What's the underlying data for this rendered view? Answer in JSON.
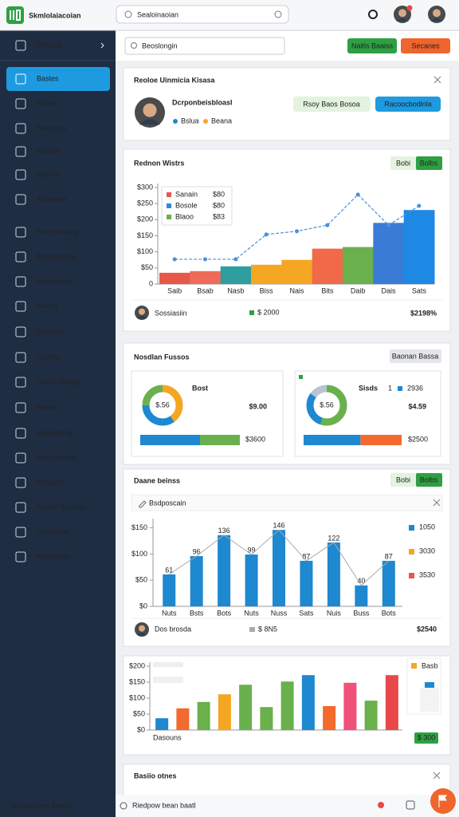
{
  "header": {
    "app_name": "Skmlolaiacoian",
    "search_placeholder": "Sealoinaoian"
  },
  "sidebar": {
    "active": 1,
    "items": [
      "Bongna",
      "Bastes",
      "Bsoiss",
      "Rocisdos",
      "Nosms",
      "Namsis",
      "Aohanlas",
      "Rocostosbag",
      "Roompotiing",
      "Bonsenbas",
      "Bansis",
      "Boniciss",
      "Socrdo",
      "Nansn Bating",
      "Baniss",
      "Nanisebing",
      "Bonscbosnis",
      "Renisno",
      "Sassin Sspong",
      "Nanssban",
      "Ronsiiona"
    ]
  },
  "toolbar": {
    "search_placeholder": "Beoslongin",
    "buttons": [
      "Naitis Baaiss",
      "Secanes"
    ]
  },
  "profile_card": {
    "title": "Reoloe Uinmicia Kisasa",
    "name": "Dcrponbeisbloasl",
    "tags": [
      "Bslua",
      "Beana"
    ],
    "buttons": [
      "Rsoy Baos Bosoa",
      "Racoocbodlnla"
    ]
  },
  "revenue_card": {
    "title": "Rednon Wistrs",
    "buttons": [
      "Bobi",
      "Bolbs"
    ],
    "chart": {
      "type": "area",
      "categories": [
        "Saib",
        "Bsab",
        "Nasb",
        "Biss",
        "Nais",
        "Bits",
        "Daib",
        "Dais",
        "Sats"
      ],
      "values": [
        35,
        40,
        55,
        60,
        75,
        110,
        115,
        190,
        230
      ],
      "colors": [
        "#e8584a",
        "#f06a5a",
        "#2e9e9e",
        "#f5a623",
        "#f5a623",
        "#f06a4a",
        "#6ab04c",
        "#3a7bd5",
        "#1e88e5"
      ],
      "line": {
        "color": "#4a90d9",
        "values": [
          77,
          77,
          77,
          154,
          164,
          183,
          278,
          183,
          243
        ]
      },
      "ylim": [
        0,
        300
      ],
      "yticks": [
        0,
        {
          "value": 50,
          "label": "$50"
        },
        {
          "value": 100,
          "label": "$100"
        },
        {
          "value": 150,
          "label": "$150"
        },
        {
          "value": 200,
          "label": "$200"
        },
        {
          "value": 250,
          "label": "$250"
        },
        {
          "value": 300,
          "label": "$300"
        }
      ],
      "legend": [
        {
          "name": "Sanain",
          "value": "$80",
          "color": "#e8584a"
        },
        {
          "name": "Bosole",
          "value": "$80",
          "color": "#2e86de"
        },
        {
          "name": "Blaoo",
          "value": "$83",
          "color": "#6ab04c"
        }
      ]
    },
    "footer": {
      "name": "Sossiasiin",
      "amount": "$ 2000",
      "change": "$2198%"
    }
  },
  "finance_card": {
    "title": "Nosdlan Fussos",
    "button": "Baonan Bassa",
    "panels": [
      {
        "label": "Bost",
        "center": "$.56",
        "amount": "$9.00",
        "amount_color": "#2e9e3a",
        "donut": {
          "values": [
            40,
            35,
            25
          ],
          "colors": [
            "#f5a623",
            "#1e88d0",
            "#6ab04c"
          ]
        },
        "bar": {
          "values": [
            60,
            40
          ],
          "colors": [
            "#1e88d0",
            "#6ab04c"
          ]
        },
        "total": "$3600"
      },
      {
        "label": "Sisds",
        "count": "1",
        "rate": "2936",
        "center": "$.56",
        "amount": "$4.59",
        "amount_color": "#f05a22",
        "donut": {
          "values": [
            55,
            30,
            15
          ],
          "colors": [
            "#6ab04c",
            "#1e88d0",
            "#b9c4cf"
          ]
        },
        "bar": {
          "values": [
            58,
            42
          ],
          "colors": [
            "#1e88d0",
            "#f26a2e"
          ]
        },
        "total": "$2500"
      }
    ]
  },
  "sales_card": {
    "title": "Daane beinss",
    "buttons": [
      "Bobi",
      "Bolbs"
    ],
    "filter": "Bsdposcain",
    "chart": {
      "type": "bar",
      "categories": [
        "Nuts",
        "Bsts",
        "Bots",
        "Nuts",
        "Nuss",
        "Sats",
        "Nuis",
        "Buss",
        "Bots"
      ],
      "values": [
        61,
        96,
        136,
        99,
        146,
        87,
        122,
        40,
        87
      ],
      "color": "#1e88d0",
      "ylim": [
        0,
        160
      ],
      "yticks": [
        {
          "value": 0,
          "label": "$0"
        },
        {
          "value": 50,
          "label": "$50"
        },
        {
          "value": 100,
          "label": "$100"
        },
        {
          "value": 150,
          "label": "$150"
        }
      ],
      "legend": [
        {
          "value": "1050",
          "color": "#1e88d0"
        },
        {
          "value": "3030",
          "color": "#f5a623"
        },
        {
          "value": "3530",
          "color": "#e8584a"
        }
      ]
    },
    "footer": {
      "name": "Dos brosda",
      "amount": "$ 8N5",
      "change": "$2540"
    }
  },
  "comparison_card": {
    "caption": "Dasouns",
    "legend": "Basb",
    "button": "$ 300",
    "chart": {
      "type": "bar",
      "values": [
        37,
        68,
        88,
        112,
        142,
        72,
        152,
        172,
        75,
        148,
        92,
        172
      ],
      "colors": [
        "#1e88d0",
        "#f26a2e",
        "#6ab04c",
        "#f5a623",
        "#6ab04c",
        "#6ab04c",
        "#6ab04c",
        "#1e88d0",
        "#f26a2e",
        "#f0507a",
        "#6ab04c",
        "#e8484a"
      ],
      "ylim": [
        0,
        200
      ],
      "yticks": [
        {
          "value": 0,
          "label": "$0"
        },
        {
          "value": 50,
          "label": "$50"
        },
        {
          "value": 100,
          "label": "$100"
        },
        {
          "value": 150,
          "label": "$150"
        },
        {
          "value": 200,
          "label": "$200"
        }
      ]
    }
  },
  "notes_card": {
    "title": "Basiio otnes"
  },
  "footer_bar": {
    "left": "Nosdaarnes Ileans",
    "center": "Riedpow bean baatl"
  }
}
